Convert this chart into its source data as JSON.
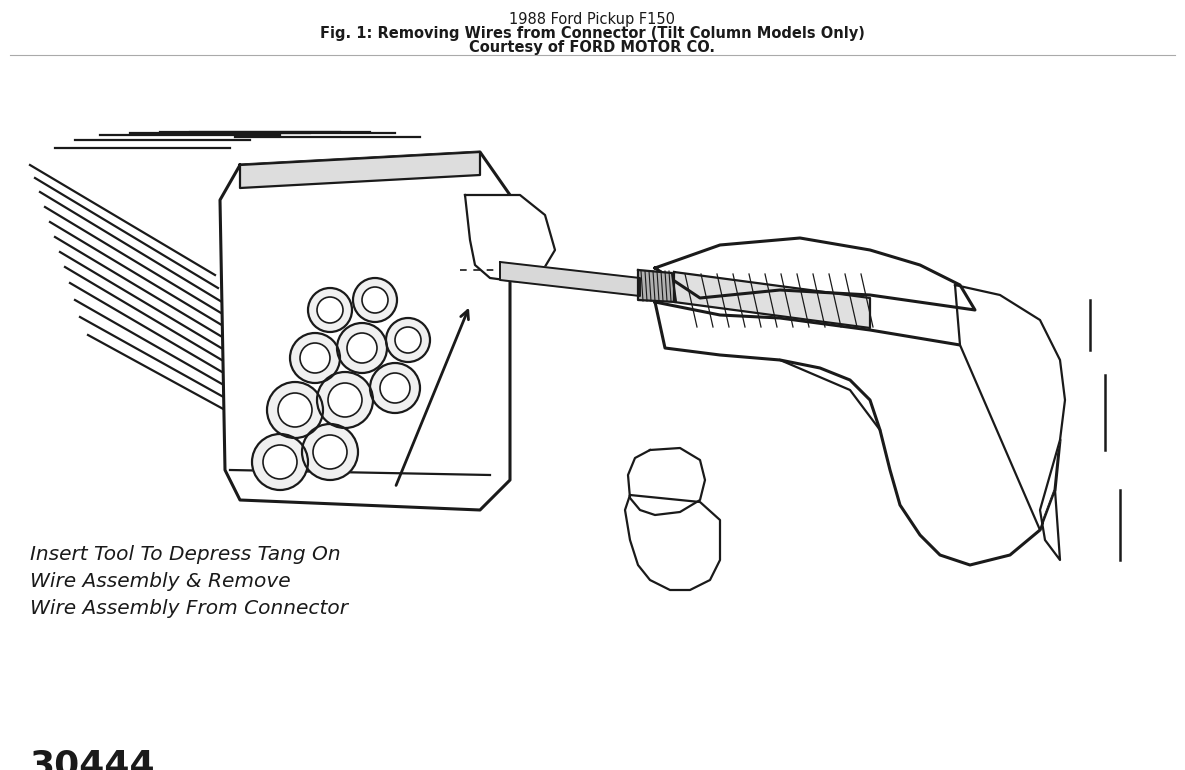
{
  "title_line1": "1988 Ford Pickup F150",
  "title_line2": "Fig. 1: Removing Wires from Connector (Tilt Column Models Only)",
  "title_line3": "Courtesy of FORD MOTOR CO.",
  "label_line1": "Insert Tool To Depress Tang On",
  "label_line2": "Wire Assembly & Remove",
  "label_line3": "Wire Assembly From Connector",
  "figure_number": "30444",
  "bg_color": "#ffffff",
  "line_color": "#1a1a1a",
  "title_fontsize": 10.5,
  "label_fontsize": 14.5,
  "fignum_fontsize": 26
}
